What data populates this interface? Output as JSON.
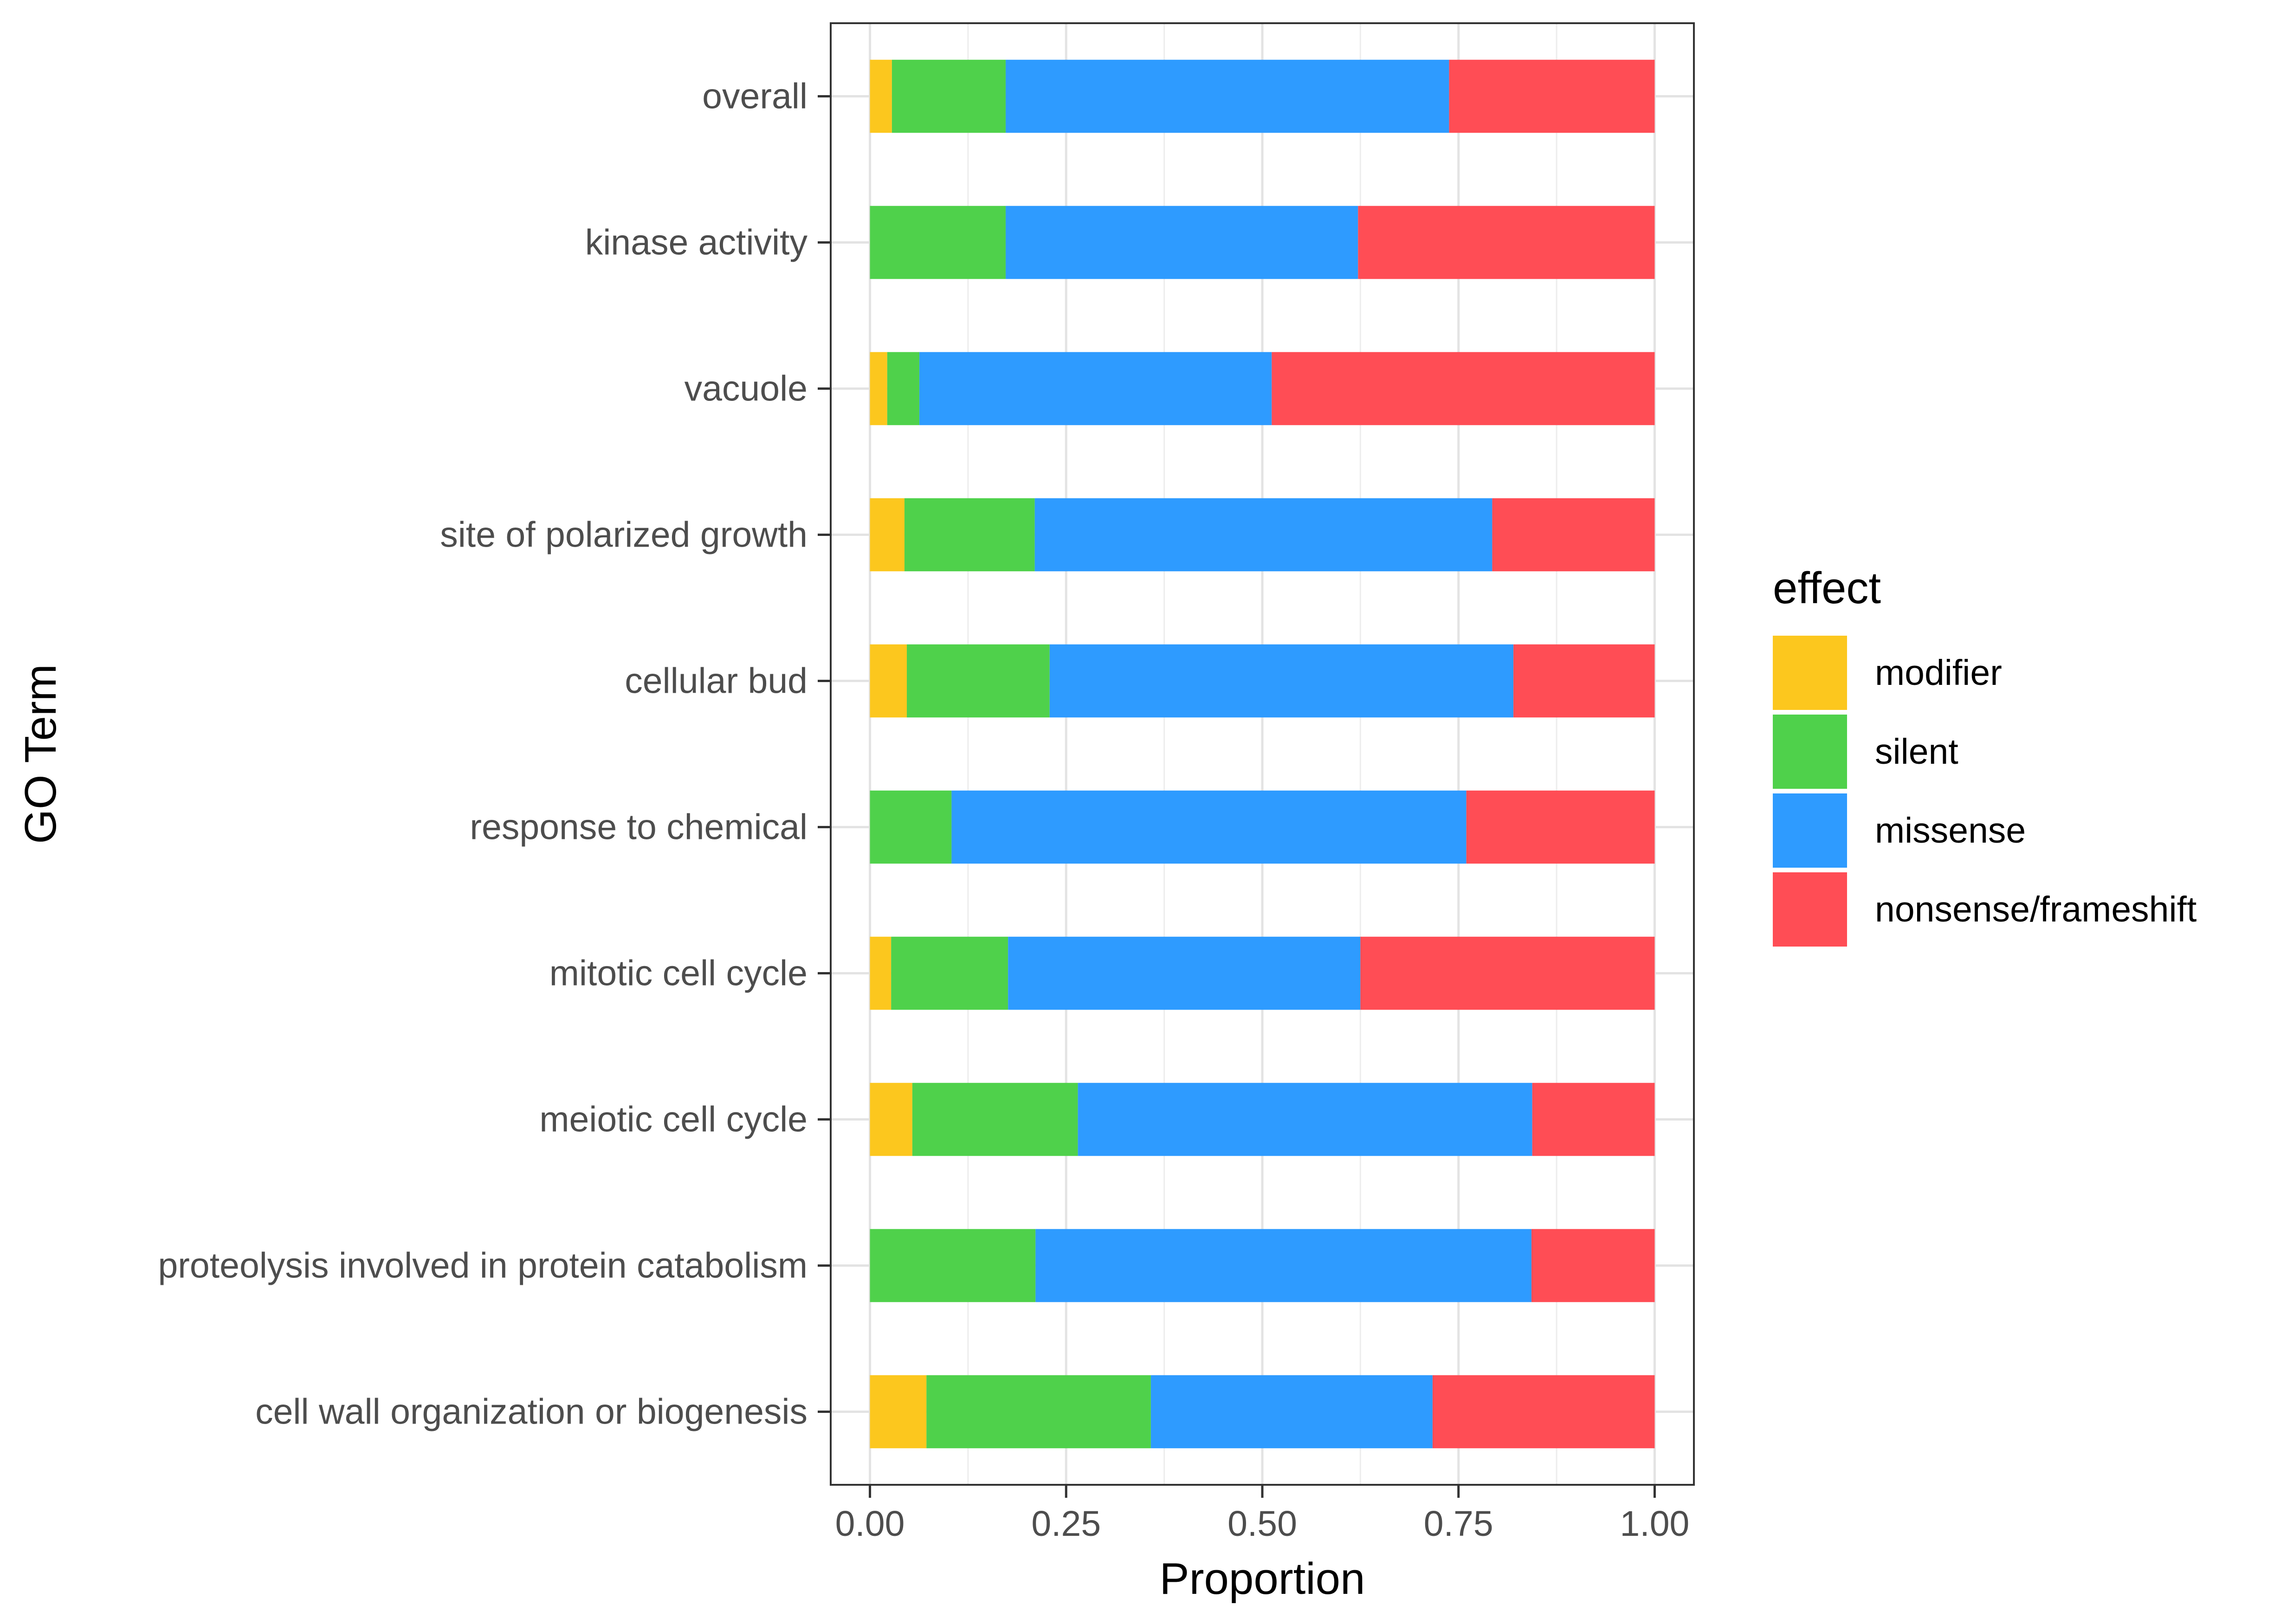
{
  "chart_data": {
    "type": "bar",
    "orientation": "horizontal",
    "stacked": true,
    "title": "",
    "xlabel": "Proportion",
    "ylabel": "GO Term",
    "xlim": [
      -0.05,
      1.05
    ],
    "xticks": [
      0,
      0.25,
      0.5,
      0.75,
      1.0
    ],
    "xtick_labels": [
      "0.00",
      "0.25",
      "0.50",
      "0.75",
      "1.00"
    ],
    "grid": true,
    "categories": [
      "overall",
      "kinase activity",
      "vacuole",
      "site of polarized growth",
      "cellular bud",
      "response to chemical",
      "mitotic cell cycle",
      "meiotic cell cycle",
      "proteolysis involved in protein catabolism",
      "cell wall organization or biogenesis"
    ],
    "series": [
      {
        "name": "modifier",
        "color": "#FCC71E",
        "values": [
          0.028,
          0.0,
          0.022,
          0.044,
          0.047,
          0.0,
          0.027,
          0.054,
          0.0,
          0.072
        ]
      },
      {
        "name": "silent",
        "color": "#4FD14B",
        "values": [
          0.145,
          0.173,
          0.041,
          0.166,
          0.182,
          0.104,
          0.149,
          0.211,
          0.211,
          0.286
        ]
      },
      {
        "name": "missense",
        "color": "#2E9BFF",
        "values": [
          0.565,
          0.449,
          0.449,
          0.583,
          0.591,
          0.656,
          0.449,
          0.579,
          0.632,
          0.359
        ]
      },
      {
        "name": "nonsense/frameshift",
        "color": "#FF4D55",
        "values": [
          0.262,
          0.378,
          0.488,
          0.207,
          0.18,
          0.24,
          0.375,
          0.156,
          0.157,
          0.283
        ]
      }
    ],
    "legend": {
      "title": "effect",
      "position": "right"
    }
  }
}
